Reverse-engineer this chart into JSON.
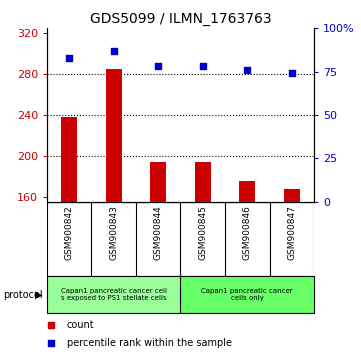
{
  "title": "GDS5099 / ILMN_1763763",
  "samples": [
    "GSM900842",
    "GSM900843",
    "GSM900844",
    "GSM900845",
    "GSM900846",
    "GSM900847"
  ],
  "counts": [
    238,
    285,
    194,
    194,
    175,
    168
  ],
  "percentile_ranks": [
    83,
    87,
    78,
    78,
    76,
    74
  ],
  "ylim_left": [
    155,
    325
  ],
  "ylim_right": [
    0,
    100
  ],
  "yticks_left": [
    160,
    200,
    240,
    280,
    320
  ],
  "yticks_right": [
    0,
    25,
    50,
    75,
    100
  ],
  "bar_color": "#cc0000",
  "dot_color": "#0000cc",
  "bg_color": "#ffffff",
  "plot_bg": "#ffffff",
  "hgrid_vals": [
    200,
    240,
    280
  ],
  "protocol_group1_label": "Capan1 pancreatic cancer cell\ns exposed to PS1 stellate cells",
  "protocol_group2_label": "Capan1 pancreatic cancer\ncells only",
  "protocol_group1_color": "#99ff99",
  "protocol_group2_color": "#66ff66",
  "protocol_group1_count": 3,
  "protocol_group2_count": 3,
  "protocol_label": "protocol",
  "legend_items": [
    {
      "color": "#cc0000",
      "label": "count"
    },
    {
      "color": "#0000cc",
      "label": "percentile rank within the sample"
    }
  ],
  "title_fontsize": 10,
  "tick_fontsize": 8,
  "label_fontsize": 6.5,
  "protocol_fontsize": 5,
  "legend_fontsize": 7
}
